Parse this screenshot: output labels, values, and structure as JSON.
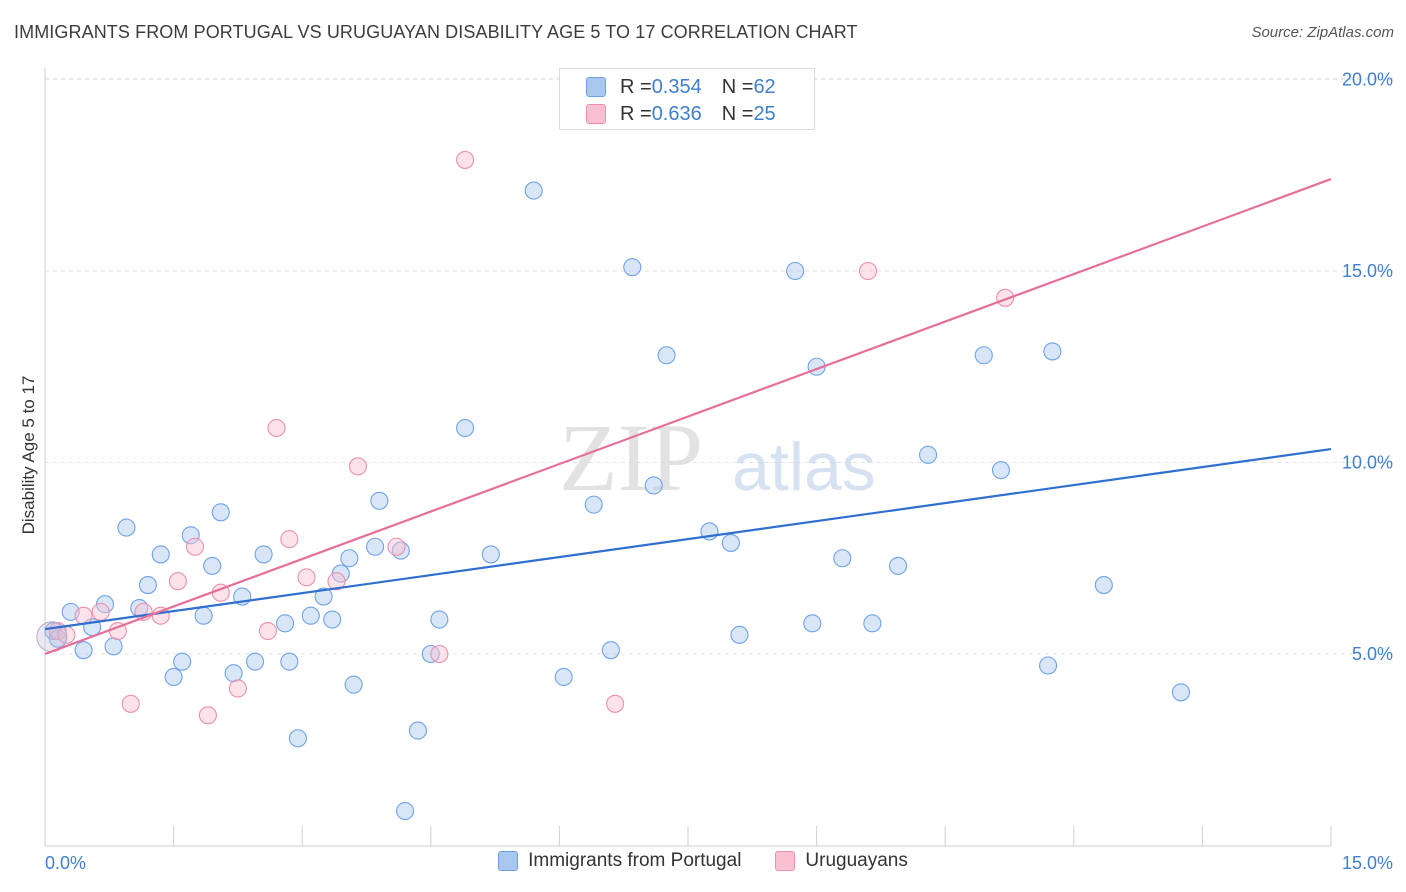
{
  "title": "IMMIGRANTS FROM PORTUGAL VS URUGUAYAN DISABILITY AGE 5 TO 17 CORRELATION CHART",
  "source": "Source: ZipAtlas.com",
  "watermark": {
    "zip": "ZIP",
    "atlas": "atlas"
  },
  "stats": [
    {
      "r_label": "R = ",
      "r_value": "0.354",
      "n_label": "N = ",
      "n_value": "62",
      "color": "#a9c8f0",
      "border": "#6f9fe0"
    },
    {
      "r_label": "R = ",
      "r_value": "0.636",
      "n_label": "N = ",
      "n_value": "25",
      "color": "#f8c0d0",
      "border": "#ec8fac"
    }
  ],
  "legend": [
    {
      "label": "Immigrants from Portugal",
      "color": "#a9c8f0",
      "border": "#6f9fe0"
    },
    {
      "label": "Uruguayans",
      "color": "#f8c0d0",
      "border": "#ec8fac"
    }
  ],
  "chart_data": {
    "type": "scatter",
    "title": "IMMIGRANTS FROM PORTUGAL VS URUGUAYAN DISABILITY AGE 5 TO 17 CORRELATION CHART",
    "xlabel": "",
    "ylabel": "Disability Age 5 to 17",
    "xlim": [
      0,
      15
    ],
    "ylim": [
      0,
      20
    ],
    "x_tick_labels": [
      {
        "value": 0,
        "label": "0.0%"
      },
      {
        "value": 15,
        "label": "15.0%"
      }
    ],
    "y_tick_labels": [
      {
        "value": 5,
        "label": "5.0%"
      },
      {
        "value": 10,
        "label": "10.0%"
      },
      {
        "value": 15,
        "label": "15.0%"
      },
      {
        "value": 20,
        "label": "20.0%"
      }
    ],
    "grid": "horizontal dashed",
    "legend_position": "bottom-center",
    "series": [
      {
        "name": "Immigrants from Portugal",
        "color": "#6fa3e8",
        "fill": "rgba(169,200,240,0.45)",
        "trend_color": "#2f6fd0",
        "trend": [
          [
            0,
            5.65
          ],
          [
            15,
            10.35
          ]
        ],
        "points": [
          [
            0.1,
            5.6
          ],
          [
            0.15,
            5.4
          ],
          [
            0.3,
            6.1
          ],
          [
            0.45,
            5.1
          ],
          [
            0.55,
            5.7
          ],
          [
            0.7,
            6.3
          ],
          [
            0.8,
            5.2
          ],
          [
            0.95,
            8.3
          ],
          [
            1.1,
            6.2
          ],
          [
            1.2,
            6.8
          ],
          [
            1.35,
            7.6
          ],
          [
            1.5,
            4.4
          ],
          [
            1.6,
            4.8
          ],
          [
            1.7,
            8.1
          ],
          [
            1.85,
            6.0
          ],
          [
            1.95,
            7.3
          ],
          [
            2.05,
            8.7
          ],
          [
            2.2,
            4.5
          ],
          [
            2.3,
            6.5
          ],
          [
            2.45,
            4.8
          ],
          [
            2.55,
            7.6
          ],
          [
            2.8,
            5.8
          ],
          [
            2.85,
            4.8
          ],
          [
            2.95,
            2.8
          ],
          [
            3.1,
            6.0
          ],
          [
            3.25,
            6.5
          ],
          [
            3.35,
            5.9
          ],
          [
            3.45,
            7.1
          ],
          [
            3.55,
            7.5
          ],
          [
            3.6,
            4.2
          ],
          [
            3.85,
            7.8
          ],
          [
            3.9,
            9.0
          ],
          [
            4.15,
            7.7
          ],
          [
            4.2,
            0.9
          ],
          [
            4.35,
            3.0
          ],
          [
            4.5,
            5.0
          ],
          [
            4.6,
            5.9
          ],
          [
            4.9,
            10.9
          ],
          [
            5.2,
            7.6
          ],
          [
            5.7,
            17.1
          ],
          [
            6.05,
            4.4
          ],
          [
            6.4,
            8.9
          ],
          [
            6.6,
            5.1
          ],
          [
            6.85,
            15.1
          ],
          [
            7.1,
            9.4
          ],
          [
            7.25,
            12.8
          ],
          [
            7.75,
            8.2
          ],
          [
            8.0,
            7.9
          ],
          [
            8.1,
            5.5
          ],
          [
            8.75,
            15.0
          ],
          [
            8.95,
            5.8
          ],
          [
            9.0,
            12.5
          ],
          [
            9.3,
            7.5
          ],
          [
            9.65,
            5.8
          ],
          [
            9.95,
            7.3
          ],
          [
            10.3,
            10.2
          ],
          [
            10.95,
            12.8
          ],
          [
            11.15,
            9.8
          ],
          [
            11.7,
            4.7
          ],
          [
            11.75,
            12.9
          ],
          [
            12.35,
            6.8
          ],
          [
            13.25,
            4.0
          ]
        ]
      },
      {
        "name": "Uruguayans",
        "color": "#ec8fac",
        "fill": "rgba(248,192,208,0.45)",
        "trend_color": "#e66f97",
        "trend": [
          [
            0,
            5.0
          ],
          [
            15,
            17.4
          ]
        ],
        "points": [
          [
            0.15,
            5.6
          ],
          [
            0.25,
            5.5
          ],
          [
            0.45,
            6.0
          ],
          [
            0.65,
            6.1
          ],
          [
            0.85,
            5.6
          ],
          [
            1.0,
            3.7
          ],
          [
            1.15,
            6.1
          ],
          [
            1.35,
            6.0
          ],
          [
            1.55,
            6.9
          ],
          [
            1.75,
            7.8
          ],
          [
            1.9,
            3.4
          ],
          [
            2.05,
            6.6
          ],
          [
            2.25,
            4.1
          ],
          [
            2.6,
            5.6
          ],
          [
            2.7,
            10.9
          ],
          [
            2.85,
            8.0
          ],
          [
            3.05,
            7.0
          ],
          [
            3.4,
            6.9
          ],
          [
            3.65,
            9.9
          ],
          [
            4.1,
            7.8
          ],
          [
            4.6,
            5.0
          ],
          [
            4.9,
            17.9
          ],
          [
            6.65,
            3.7
          ],
          [
            9.6,
            15.0
          ],
          [
            11.2,
            14.3
          ]
        ]
      }
    ]
  }
}
